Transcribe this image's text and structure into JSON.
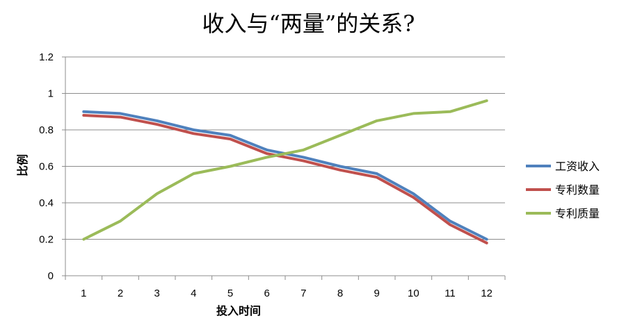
{
  "chart_data": {
    "type": "line",
    "title": "收入与“两量”的关系?",
    "xlabel": "投入时间",
    "ylabel": "比例",
    "categories": [
      "1",
      "2",
      "3",
      "4",
      "5",
      "6",
      "7",
      "8",
      "9",
      "10",
      "11",
      "12"
    ],
    "ylim": [
      0,
      1.2
    ],
    "yticks": [
      0,
      0.2,
      0.4,
      0.6,
      0.8,
      1,
      1.2
    ],
    "ytick_labels": [
      "0",
      "0.2",
      "0.4",
      "0.6",
      "0.8",
      "1",
      "1.2"
    ],
    "grid": true,
    "legend_position": "right",
    "series": [
      {
        "name": "工资收入",
        "color": "#4f81bd",
        "values": [
          0.9,
          0.89,
          0.85,
          0.8,
          0.77,
          0.69,
          0.65,
          0.6,
          0.56,
          0.45,
          0.3,
          0.2
        ]
      },
      {
        "name": "专利数量",
        "color": "#c0504d",
        "values": [
          0.88,
          0.87,
          0.83,
          0.78,
          0.75,
          0.67,
          0.63,
          0.58,
          0.54,
          0.43,
          0.28,
          0.18
        ]
      },
      {
        "name": "专利质量",
        "color": "#9bbb59",
        "values": [
          0.2,
          0.3,
          0.45,
          0.56,
          0.6,
          0.65,
          0.69,
          0.77,
          0.85,
          0.89,
          0.9,
          0.96
        ]
      }
    ]
  }
}
